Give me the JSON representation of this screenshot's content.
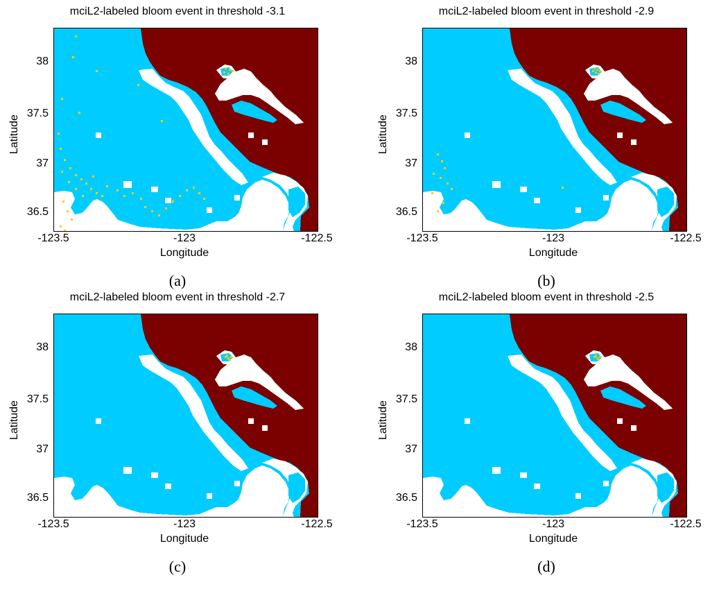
{
  "panels": [
    {
      "title": "mciL2-labeled bloom event in threshold -3.1",
      "label": "(a)",
      "level": "high"
    },
    {
      "title": "mciL2-labeled bloom event in threshold -2.9",
      "label": "(b)",
      "level": "medium"
    },
    {
      "title": "mciL2-labeled bloom event in threshold -2.7",
      "label": "(c)",
      "level": "low"
    },
    {
      "title": "mciL2-labeled bloom event in threshold -2.5",
      "label": "(d)",
      "level": "low"
    }
  ],
  "axes": {
    "xlabel": "Longitude",
    "ylabel": "Latitude",
    "xticks": [
      "-123.5",
      "-123",
      "-122.5"
    ],
    "yticks": [
      "38",
      "37.5",
      "37",
      "36.5"
    ]
  },
  "colors": {
    "land": "#7b0000",
    "water": "#00ccff",
    "nodata": "#ffffff",
    "bloom": "#ffcc00"
  }
}
